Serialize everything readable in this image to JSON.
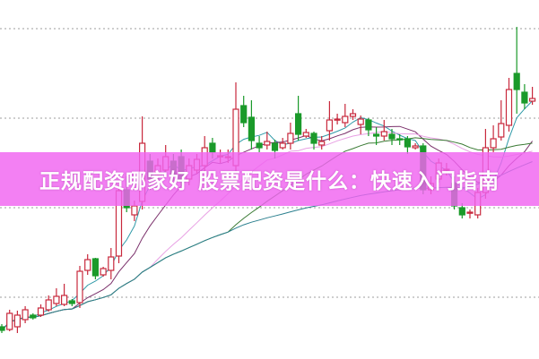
{
  "banner": {
    "title": "正规配资哪家好 股票配资是什么：快速入门指南"
  },
  "chart_data": {
    "type": "candlestick",
    "title": "",
    "xlabel": "",
    "ylabel": "",
    "ylim": [
      3.1,
      43.2
    ],
    "grid": {
      "horizontal": true,
      "style": "dotted",
      "levels": [
        10,
        20,
        30,
        40
      ]
    },
    "colors": {
      "up": "#c8283c",
      "down": "#1a9a2a",
      "grid": "#b0b0b0",
      "banner": "#f064f0"
    },
    "moving_averages": [
      {
        "period": 5,
        "color": "#2f9aa8"
      },
      {
        "period": 10,
        "color": "#7a2f6a"
      },
      {
        "period": 20,
        "color": "#e8a0e4"
      },
      {
        "period": 30,
        "color": "#3a7a34"
      },
      {
        "period": 60,
        "color": "#2a7f8e"
      }
    ],
    "ohlc": [
      [
        6.7,
        7.0,
        6.0,
        6.3
      ],
      [
        6.4,
        8.6,
        6.2,
        8.2
      ],
      [
        6.7,
        8.5,
        6.0,
        8.0
      ],
      [
        7.5,
        9.0,
        7.1,
        8.6
      ],
      [
        8.0,
        8.2,
        7.5,
        7.7
      ],
      [
        8.0,
        9.2,
        7.8,
        8.8
      ],
      [
        8.6,
        10.2,
        8.4,
        9.7
      ],
      [
        9.3,
        11.0,
        9.0,
        10.1
      ],
      [
        9.2,
        11.5,
        9.0,
        10.2
      ],
      [
        9.6,
        9.8,
        9.0,
        9.3
      ],
      [
        9.4,
        13.5,
        8.8,
        12.9
      ],
      [
        13.0,
        14.8,
        12.5,
        14.2
      ],
      [
        14.3,
        14.4,
        12.0,
        12.4
      ],
      [
        12.5,
        13.4,
        12.3,
        13.2
      ],
      [
        13.0,
        15.5,
        12.0,
        14.5
      ],
      [
        14.6,
        22.4,
        13.8,
        21.9
      ],
      [
        22.0,
        23.5,
        19.5,
        20.0
      ],
      [
        19.2,
        20.8,
        18.5,
        20.2
      ],
      [
        20.7,
        30.2,
        19.8,
        27.2
      ],
      [
        25.2,
        26.0,
        22.0,
        23.2
      ],
      [
        23.7,
        25.5,
        23.0,
        24.7
      ],
      [
        24.2,
        27.0,
        23.5,
        25.7
      ],
      [
        25.2,
        26.0,
        23.0,
        23.7
      ],
      [
        25.7,
        26.5,
        22.5,
        23.2
      ],
      [
        23.2,
        25.5,
        22.5,
        24.7
      ],
      [
        24.2,
        26.0,
        23.8,
        25.4
      ],
      [
        24.7,
        28.0,
        24.0,
        26.7
      ],
      [
        27.2,
        27.8,
        25.5,
        26.2
      ],
      [
        25.7,
        26.5,
        25.0,
        25.8
      ],
      [
        25.6,
        26.5,
        25.0,
        25.7
      ],
      [
        24.7,
        34.0,
        24.0,
        31.0
      ],
      [
        31.4,
        32.5,
        29.0,
        29.5
      ],
      [
        30.1,
        32.0,
        26.5,
        27.5
      ],
      [
        27.2,
        28.0,
        26.2,
        26.7
      ],
      [
        27.0,
        28.5,
        26.5,
        27.4
      ],
      [
        27.2,
        27.6,
        25.5,
        26.4
      ],
      [
        26.7,
        27.8,
        26.5,
        27.2
      ],
      [
        27.2,
        29.5,
        26.5,
        28.3
      ],
      [
        30.5,
        32.5,
        27.5,
        28.2
      ],
      [
        28.0,
        28.8,
        27.8,
        28.4
      ],
      [
        28.3,
        28.5,
        26.5,
        27.2
      ],
      [
        27.0,
        28.0,
        26.5,
        27.4
      ],
      [
        28.6,
        31.9,
        27.5,
        29.8
      ],
      [
        29.8,
        30.5,
        29.3,
        29.9
      ],
      [
        29.5,
        31.6,
        29.0,
        30.2
      ],
      [
        30.2,
        31.0,
        29.8,
        30.5
      ],
      [
        29.3,
        30.3,
        28.2,
        29.9
      ],
      [
        29.8,
        30.0,
        28.0,
        28.7
      ],
      [
        28.2,
        29.0,
        27.0,
        28.0
      ],
      [
        28.0,
        29.8,
        27.5,
        28.5
      ],
      [
        28.2,
        28.8,
        27.0,
        27.7
      ],
      [
        27.7,
        28.2,
        27.0,
        27.6
      ],
      [
        27.7,
        28.0,
        26.0,
        26.8
      ],
      [
        26.7,
        27.2,
        26.5,
        26.9
      ],
      [
        26.9,
        27.2,
        21.5,
        22.0
      ],
      [
        22.0,
        23.5,
        21.5,
        22.7
      ],
      [
        23.2,
        25.5,
        22.8,
        25.0
      ],
      [
        24.2,
        25.0,
        23.6,
        24.3
      ],
      [
        22.7,
        23.5,
        19.8,
        20.2
      ],
      [
        20.0,
        20.5,
        18.8,
        19.2
      ],
      [
        19.4,
        19.8,
        18.8,
        19.5
      ],
      [
        19.2,
        22.2,
        18.8,
        21.7
      ],
      [
        21.7,
        28.8,
        21.0,
        26.7
      ],
      [
        26.7,
        29.2,
        26.2,
        27.7
      ],
      [
        27.9,
        32.0,
        27.5,
        29.4
      ],
      [
        29.2,
        34.5,
        28.5,
        33.2
      ],
      [
        35.0,
        40.2,
        30.5,
        33.2
      ],
      [
        32.9,
        33.8,
        31.0,
        31.7
      ],
      [
        31.9,
        33.5,
        31.5,
        32.2
      ]
    ]
  }
}
